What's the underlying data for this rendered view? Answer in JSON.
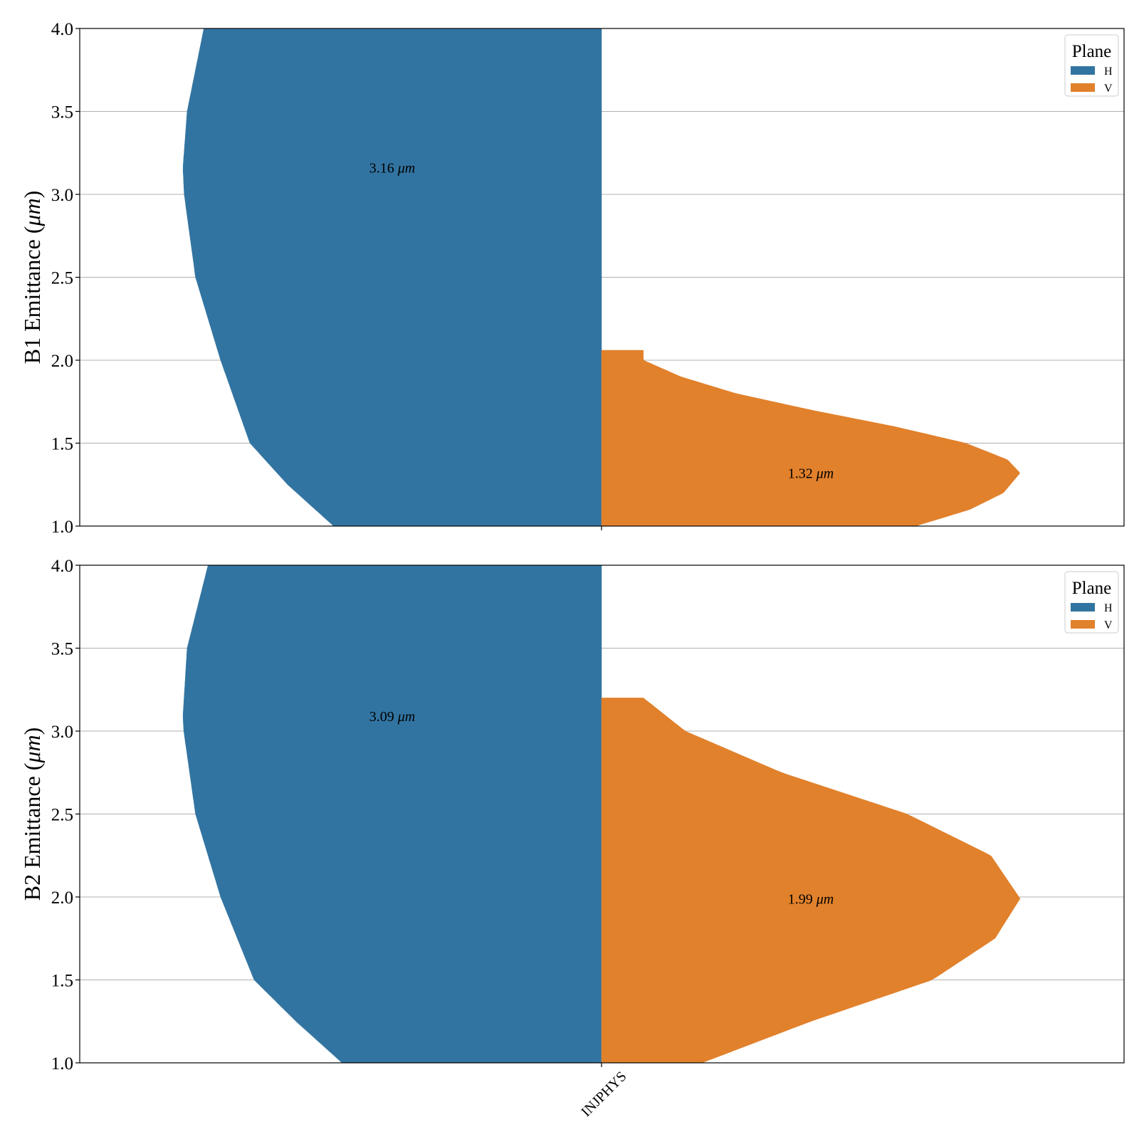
{
  "colors": {
    "H": "#3274a1",
    "V": "#e1812c",
    "grid": "#b0b0b0",
    "axis": "#000000"
  },
  "chart_data": [
    {
      "type": "violin",
      "ylabel": "B1 Emittance (μm)",
      "ylim": [
        1.0,
        4.0
      ],
      "yticks": [
        "1.0",
        "1.5",
        "2.0",
        "2.5",
        "3.0",
        "3.5",
        "4.0"
      ],
      "category": "INJPHYS",
      "grid": true,
      "legend": {
        "title": "Plane",
        "entries": [
          "H",
          "V"
        ],
        "position": "top-right"
      },
      "series": [
        {
          "name": "H",
          "side": "left",
          "mean_label": "3.16 μm",
          "mean": 3.16,
          "density": [
            [
              1.0,
              0.64
            ],
            [
              1.25,
              0.75
            ],
            [
              1.5,
              0.84
            ],
            [
              2.0,
              0.91
            ],
            [
              2.5,
              0.97
            ],
            [
              3.0,
              0.997
            ],
            [
              3.16,
              1.0
            ],
            [
              3.5,
              0.99
            ],
            [
              4.0,
              0.95
            ]
          ]
        },
        {
          "name": "V",
          "side": "right",
          "mean_label": "1.32 μm",
          "mean": 1.32,
          "cut_max": 2.06,
          "density": [
            [
              1.0,
              0.75
            ],
            [
              1.1,
              0.88
            ],
            [
              1.2,
              0.96
            ],
            [
              1.32,
              1.0
            ],
            [
              1.4,
              0.97
            ],
            [
              1.5,
              0.87
            ],
            [
              1.6,
              0.7
            ],
            [
              1.7,
              0.5
            ],
            [
              1.8,
              0.32
            ],
            [
              1.9,
              0.19
            ],
            [
              2.0,
              0.1
            ],
            [
              2.06,
              0.1
            ]
          ]
        }
      ]
    },
    {
      "type": "violin",
      "ylabel": "B2 Emittance (μm)",
      "ylim": [
        1.0,
        4.0
      ],
      "yticks": [
        "1.0",
        "1.5",
        "2.0",
        "2.5",
        "3.0",
        "3.5",
        "4.0"
      ],
      "category": "INJPHYS",
      "grid": true,
      "legend": {
        "title": "Plane",
        "entries": [
          "H",
          "V"
        ],
        "position": "top-right"
      },
      "series": [
        {
          "name": "H",
          "side": "left",
          "mean_label": "3.09 μm",
          "mean": 3.09,
          "density": [
            [
              1.0,
              0.62
            ],
            [
              1.25,
              0.73
            ],
            [
              1.5,
              0.83
            ],
            [
              2.0,
              0.91
            ],
            [
              2.5,
              0.97
            ],
            [
              3.0,
              0.998
            ],
            [
              3.09,
              1.0
            ],
            [
              3.5,
              0.99
            ],
            [
              4.0,
              0.94
            ]
          ]
        },
        {
          "name": "V",
          "side": "right",
          "mean_label": "1.99 μm",
          "mean": 1.99,
          "cut_max": 3.2,
          "density": [
            [
              1.0,
              0.24
            ],
            [
              1.25,
              0.5
            ],
            [
              1.5,
              0.79
            ],
            [
              1.75,
              0.94
            ],
            [
              1.99,
              1.0
            ],
            [
              2.25,
              0.93
            ],
            [
              2.5,
              0.73
            ],
            [
              2.75,
              0.43
            ],
            [
              3.0,
              0.2
            ],
            [
              3.2,
              0.1
            ]
          ]
        }
      ]
    }
  ]
}
